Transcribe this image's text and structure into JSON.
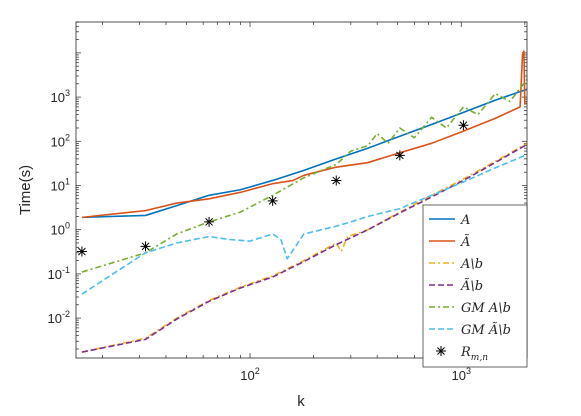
{
  "chart_data": {
    "type": "line",
    "title": "",
    "xlabel": "k",
    "ylabel": "Time(s)",
    "xscale": "log",
    "yscale": "log",
    "xlim": [
      15,
      2048
    ],
    "ylim": [
      0.00125,
      50000
    ],
    "grid": false,
    "legend_position": "bottom-right",
    "x_ticks": [
      {
        "value": 100,
        "base": "10",
        "exp": "2"
      },
      {
        "value": 1000,
        "base": "10",
        "exp": "3"
      }
    ],
    "y_ticks": [
      {
        "value": 0.01,
        "base": "10",
        "exp": "-2"
      },
      {
        "value": 0.1,
        "base": "10",
        "exp": "-1"
      },
      {
        "value": 1,
        "base": "10",
        "exp": "0"
      },
      {
        "value": 10,
        "base": "10",
        "exp": "1"
      },
      {
        "value": 100,
        "base": "10",
        "exp": "2"
      },
      {
        "value": 1000,
        "base": "10",
        "exp": "3"
      }
    ],
    "series": [
      {
        "name": "A",
        "legend_text": "A",
        "color": "#0072BD",
        "dash": "solid",
        "x": [
          16,
          32,
          45,
          64,
          90,
          128,
          180,
          256,
          362,
          512,
          724,
          1024,
          1448,
          2048
        ],
        "y": [
          1.9,
          2.1,
          3.5,
          6.0,
          8.0,
          13.0,
          22.0,
          40.0,
          70.0,
          130.0,
          240.0,
          450.0,
          850.0,
          1500.0
        ]
      },
      {
        "name": "Ã",
        "legend_text": "Ã",
        "color": "#D95319",
        "dash": "solid",
        "x": [
          16,
          32,
          45,
          64,
          90,
          128,
          160,
          180,
          256,
          362,
          512,
          724,
          1024,
          1448,
          1900,
          1950,
          1980,
          2000,
          2048
        ],
        "y": [
          1.9,
          2.7,
          4.0,
          5.0,
          7.0,
          11.0,
          13.0,
          17.0,
          26.0,
          33.0,
          55.0,
          90.0,
          170.0,
          330.0,
          600.0,
          9000.0,
          11000.0,
          700.0,
          720.0
        ]
      },
      {
        "name": "A\\b",
        "legend_text": "A\\b",
        "color": "#EDB120",
        "dash": "6,3,2,3",
        "x": [
          16,
          32,
          45,
          64,
          90,
          128,
          180,
          256,
          270,
          290,
          362,
          512,
          724,
          1024,
          1448,
          2048
        ],
        "y": [
          0.0017,
          0.0035,
          0.01,
          0.025,
          0.05,
          0.09,
          0.2,
          0.5,
          0.32,
          0.7,
          1.0,
          2.5,
          6.0,
          14.0,
          35.0,
          90.0
        ]
      },
      {
        "name": "Ã\\b",
        "legend_text": "Ã\\b",
        "color": "#7E2F8E",
        "dash": "6,3",
        "x": [
          16,
          32,
          45,
          64,
          90,
          128,
          180,
          256,
          362,
          512,
          724,
          1024,
          1448,
          2048
        ],
        "y": [
          0.0017,
          0.0033,
          0.0095,
          0.024,
          0.048,
          0.085,
          0.19,
          0.46,
          1.0,
          2.4,
          5.5,
          13.0,
          33.0,
          85.0
        ]
      },
      {
        "name": "GM A\\b",
        "legend_text": "GM A\\b",
        "color": "#77AC30",
        "dash": "6,3,2,3",
        "x": [
          16,
          32,
          45,
          64,
          90,
          128,
          180,
          256,
          300,
          362,
          400,
          450,
          512,
          600,
          724,
          850,
          1024,
          1200,
          1448,
          1700,
          2048
        ],
        "y": [
          0.11,
          0.3,
          0.8,
          1.5,
          2.5,
          6.0,
          15.0,
          30.0,
          60.0,
          80.0,
          150.0,
          90.0,
          200.0,
          120.0,
          350.0,
          200.0,
          600.0,
          400.0,
          1200.0,
          800.0,
          2500.0
        ]
      },
      {
        "name": "GM Ã\\b",
        "legend_text": "GM Ã\\b",
        "color": "#4DBEEE",
        "dash": "6,3",
        "x": [
          16,
          32,
          45,
          64,
          80,
          100,
          128,
          140,
          150,
          180,
          256,
          300,
          362,
          512,
          724,
          1024,
          1448,
          2048
        ],
        "y": [
          0.035,
          0.3,
          0.5,
          0.7,
          0.6,
          0.55,
          0.8,
          0.6,
          0.22,
          0.8,
          1.2,
          1.5,
          2.0,
          3.0,
          6.0,
          12.0,
          25.0,
          50.0
        ]
      },
      {
        "name": "R_{m,n}",
        "legend_text": "R",
        "legend_sub": "m,n",
        "color": "#000000",
        "type": "scatter",
        "x": [
          16,
          32,
          64,
          128,
          256,
          512,
          1024
        ],
        "y": [
          0.32,
          0.42,
          1.5,
          4.5,
          13.0,
          48.0,
          230.0
        ]
      }
    ]
  }
}
